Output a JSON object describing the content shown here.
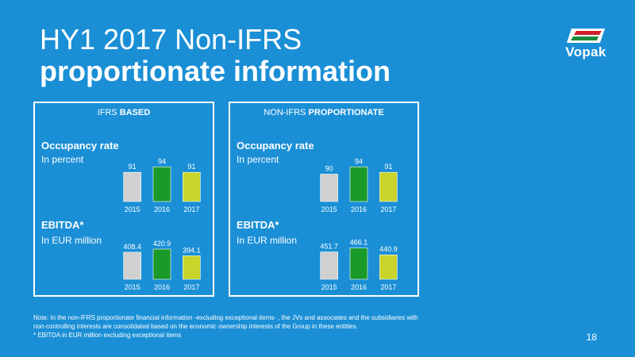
{
  "title": {
    "line1": "HY1 2017 Non-IFRS",
    "line2": "proportionate information"
  },
  "logo": {
    "text": "Vopak",
    "icon": "vopak-flag-logo"
  },
  "colors": {
    "background": "#1a8fd6",
    "bar_2015": "#d0d0d0",
    "bar_2016": "#1a9a2a",
    "bar_2017": "#c8d42a"
  },
  "panels": {
    "left": {
      "header_prefix": "IFRS ",
      "header_bold": "BASED",
      "occupancy": {
        "title": "Occupancy rate",
        "sub": "In percent"
      },
      "ebitda": {
        "title": "EBITDA*",
        "sub": "In EUR million"
      }
    },
    "right": {
      "header_prefix": "NON-IFRS ",
      "header_bold": "PROPORTIONATE",
      "occupancy": {
        "title": "Occupancy rate",
        "sub": "In percent"
      },
      "ebitda": {
        "title": "EBITDA*",
        "sub": "In EUR million"
      }
    }
  },
  "chart_data": [
    {
      "type": "bar",
      "categories": [
        "2015",
        "2016",
        "2017"
      ],
      "values": [
        91,
        94,
        91
      ],
      "labels": [
        "91",
        "94",
        "91"
      ],
      "ylim": [
        75,
        95
      ]
    },
    {
      "type": "bar",
      "categories": [
        "2015",
        "2016",
        "2017"
      ],
      "values": [
        408.4,
        420.9,
        394.1
      ],
      "labels": [
        "408.4",
        "420.9",
        "394.1"
      ],
      "ylim": [
        300,
        440
      ]
    },
    {
      "type": "bar",
      "categories": [
        "2015",
        "2016",
        "2017"
      ],
      "values": [
        90,
        94,
        91
      ],
      "labels": [
        "90",
        "94",
        "91"
      ],
      "ylim": [
        75,
        95
      ]
    },
    {
      "type": "bar",
      "categories": [
        "2015",
        "2016",
        "2017"
      ],
      "values": [
        451.7,
        466.1,
        440.9
      ],
      "labels": [
        "451.7",
        "466.1",
        "440.9"
      ],
      "ylim": [
        350,
        480
      ]
    }
  ],
  "note": {
    "line1": "Note: In the non-IFRS proportionate financial information -excluding exceptional items- , the JVs and associates and the subsidiaries with",
    "line2": "non-controlling interests are consolidated based on the economic ownership interests of the Group in these entities.",
    "line3": "* EBITDA in EUR million excluding exceptional items"
  },
  "page_number": "18"
}
